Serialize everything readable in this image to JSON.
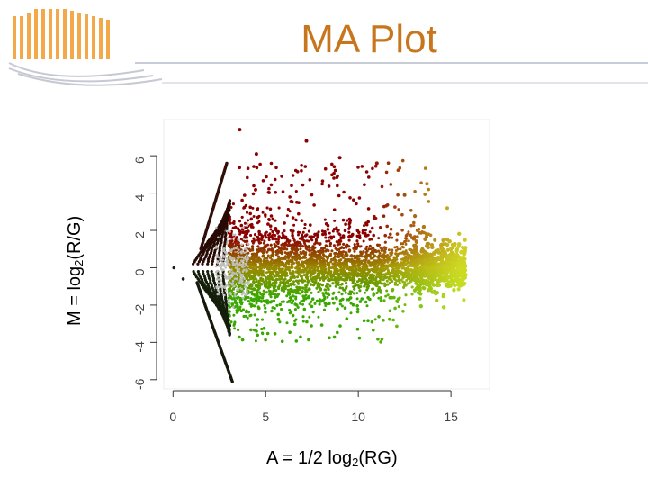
{
  "slide": {
    "title": "MA Plot"
  },
  "chart_data": {
    "type": "scatter",
    "ylabel": {
      "prefix": "M = log",
      "subscript": "2",
      "suffix": "(R/G)"
    },
    "xlabel": {
      "prefix": "A = 1/2 log",
      "subscript": "2",
      "suffix": "(RG)"
    },
    "xlim": [
      -0.5,
      16.5
    ],
    "ylim": [
      -6.3,
      7.6
    ],
    "x_ticks": [
      0,
      5,
      10,
      15
    ],
    "x_tick_labels": [
      "0",
      "5",
      "10",
      "15"
    ],
    "y_ticks": [
      -6,
      -4,
      -2,
      0,
      2,
      4,
      6
    ],
    "y_tick_labels": [
      "-6",
      "-4",
      "-2",
      "0",
      "2",
      "4",
      "6"
    ],
    "point_colors": {
      "high_m": "#8b0000",
      "mid": "#9a8a00",
      "low_m": "#3aa800",
      "high_a": "#d8e82a"
    },
    "grid": false,
    "legend": "none",
    "highlighted_points": [
      {
        "x": 3.6,
        "y": 7.4
      },
      {
        "x": 7.2,
        "y": 6.8
      },
      {
        "x": 4.5,
        "y": 6.1
      },
      {
        "x": 9.0,
        "y": 5.9
      },
      {
        "x": 11.0,
        "y": 5.6
      },
      {
        "x": 13.7,
        "y": 4.5
      },
      {
        "x": 12.5,
        "y": 3.9
      },
      {
        "x": 14.8,
        "y": 3.2
      }
    ]
  }
}
